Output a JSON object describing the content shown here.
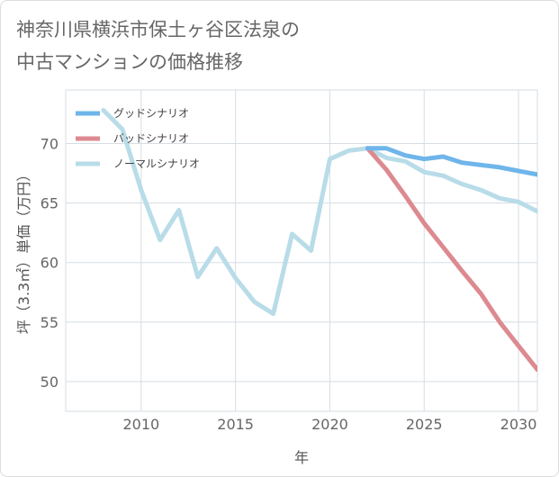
{
  "title_lines": [
    "神奈川県横浜市保土ヶ谷区法泉の",
    "中古マンションの価格推移"
  ],
  "chart_data": {
    "type": "line",
    "title": "神奈川県横浜市保土ヶ谷区法泉の中古マンションの価格推移",
    "xlabel": "年",
    "ylabel": "坪（3.3㎡）単価（万円）",
    "xlim": [
      2006,
      2031
    ],
    "ylim": [
      47.5,
      74.5
    ],
    "xticks": [
      2010,
      2015,
      2020,
      2025,
      2030
    ],
    "yticks": [
      50,
      55,
      60,
      65,
      70
    ],
    "grid": true,
    "legend_position": "top-left",
    "series": [
      {
        "name": "グッドシナリオ",
        "color": "#6fb5ea",
        "x": [
          2022,
          2023,
          2024,
          2025,
          2026,
          2027,
          2028,
          2029,
          2030,
          2031
        ],
        "y": [
          69.6,
          69.6,
          69.0,
          68.7,
          68.9,
          68.4,
          68.2,
          68.0,
          67.7,
          67.4
        ]
      },
      {
        "name": "バッドシナリオ",
        "color": "#dc8a90",
        "x": [
          2022,
          2023,
          2024,
          2025,
          2026,
          2027,
          2028,
          2029,
          2030,
          2031
        ],
        "y": [
          69.6,
          67.8,
          65.6,
          63.3,
          61.3,
          59.3,
          57.4,
          55.0,
          53.0,
          51.0
        ]
      },
      {
        "name": "ノーマルシナリオ",
        "color": "#b8dce8",
        "x": [
          2008,
          2009,
          2010,
          2011,
          2012,
          2013,
          2014,
          2015,
          2016,
          2017,
          2018,
          2019,
          2020,
          2021,
          2022,
          2023,
          2024,
          2025,
          2026,
          2027,
          2028,
          2029,
          2030,
          2031
        ],
        "y": [
          72.8,
          71.2,
          66.1,
          61.9,
          64.4,
          58.8,
          61.2,
          58.7,
          56.7,
          55.7,
          62.4,
          61.0,
          68.7,
          69.4,
          69.6,
          68.8,
          68.5,
          67.6,
          67.3,
          66.6,
          66.1,
          65.4,
          65.1,
          64.3
        ]
      }
    ]
  }
}
